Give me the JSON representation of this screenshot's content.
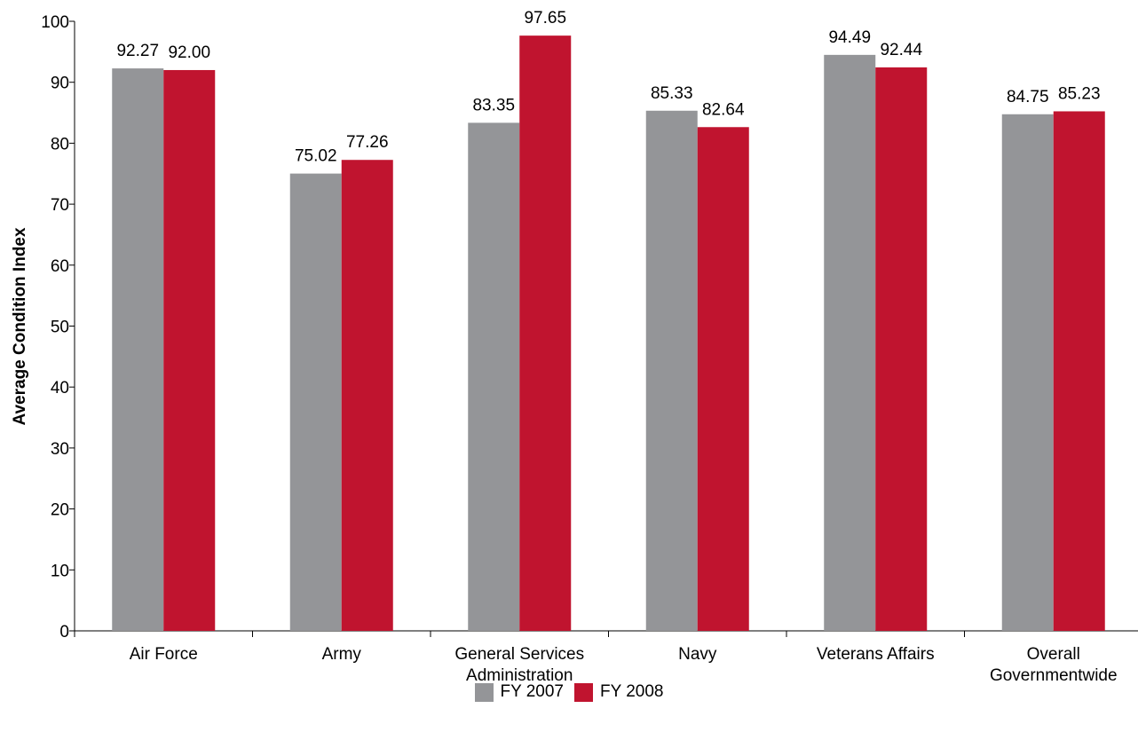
{
  "chart_data": {
    "type": "bar",
    "ylabel": "Average Condition Index",
    "xlabel": "",
    "ylim": [
      0,
      100
    ],
    "yticks": [
      "0",
      "10",
      "20",
      "30",
      "40",
      "50",
      "60",
      "70",
      "80",
      "90",
      "100"
    ],
    "categories": [
      [
        "Air Force"
      ],
      [
        "Army"
      ],
      [
        "General Services",
        "Administration"
      ],
      [
        "Navy"
      ],
      [
        "Veterans Affairs"
      ],
      [
        "Overall",
        "Governmentwide"
      ]
    ],
    "series": [
      {
        "name": "FY 2007",
        "color": "#949598",
        "values": [
          92.27,
          75.02,
          83.35,
          85.33,
          94.49,
          84.75
        ],
        "labels": [
          "92.27",
          "75.02",
          "83.35",
          "85.33",
          "94.49",
          "84.75"
        ]
      },
      {
        "name": "FY 2008",
        "color": "#c0142f",
        "values": [
          92.0,
          77.26,
          97.65,
          82.64,
          92.44,
          85.23
        ],
        "labels": [
          "92.00",
          "77.26",
          "97.65",
          "82.64",
          "92.44",
          "85.23"
        ]
      }
    ],
    "legend_position": "bottom-center",
    "grid": false
  }
}
